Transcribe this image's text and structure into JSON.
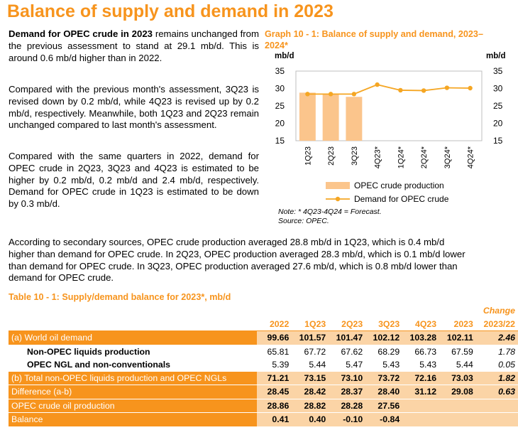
{
  "page": {
    "title": "Balance of supply and demand in 2023"
  },
  "paragraphs": {
    "p1_bold": "Demand for OPEC crude in 2023",
    "p1_rest": " remains unchanged from the previous assessment to stand at 29.1 mb/d. This is around 0.6 mb/d higher than in 2022.",
    "p2": "Compared with the previous month's assessment, 3Q23 is revised down by 0.2 mb/d, while 4Q23 is revised up by 0.2 mb/d, respectively. Meanwhile, both 1Q23 and 2Q23 remain unchanged compared to last month's assessment.",
    "p3": "Compared with the same quarters in 2022, demand for OPEC crude in 2Q23, 3Q23 and 4Q23 is estimated to be higher by 0.2 mb/d, 0.2 mb/d and 2.4 mb/d, respectively. Demand for OPEC crude in 1Q23 is estimated to be down by 0.3 mb/d.",
    "p4_line1": "According to secondary sources, OPEC crude production averaged 28.8 mb/d in 1Q23, which is 0.4 mb/d",
    "p4_line2": "higher than demand for OPEC crude. In 2Q23, OPEC production averaged 28.3 mb/d, which is 0.1 mb/d lower",
    "p4_line3": "than demand for OPEC crude. In 3Q23, OPEC production averaged 27.6 mb/d, which is 0.8 mb/d lower than",
    "p4_line4": "demand for OPEC crude."
  },
  "graph": {
    "title": "Graph 10 - 1: Balance of supply and demand, 2023–2024*",
    "note_line1": "Note: * 4Q23-4Q24 = Forecast.",
    "note_line2": "Source: OPEC."
  },
  "chart_data": {
    "type": "bar",
    "title": "Graph 10 - 1: Balance of supply and demand, 2023–2024*",
    "ylabel_left": "mb/d",
    "ylabel_right": "mb/d",
    "ylim": [
      15,
      35
    ],
    "yticks": [
      15,
      20,
      25,
      30,
      35
    ],
    "categories": [
      "1Q23",
      "2Q23",
      "3Q23",
      "4Q23*",
      "1Q24*",
      "2Q24*",
      "3Q24*",
      "4Q24*"
    ],
    "series": [
      {
        "name": "OPEC crude production",
        "type": "bar",
        "color": "#fbc58c",
        "values": [
          28.8,
          28.3,
          27.6,
          null,
          null,
          null,
          null,
          null
        ]
      },
      {
        "name": "Demand for OPEC crude",
        "type": "line",
        "color": "#f5a623",
        "values": [
          28.4,
          28.4,
          28.4,
          31.1,
          29.5,
          29.4,
          30.2,
          30.1
        ]
      }
    ],
    "legend": "bottom",
    "grid": false
  },
  "table": {
    "title": "Table 10 - 1: Supply/demand balance for 2023*, mb/d",
    "change_label": "Change",
    "headers": [
      "2022",
      "1Q23",
      "2Q23",
      "3Q23",
      "4Q23",
      "2023",
      "2023/22"
    ],
    "rows": [
      {
        "label": "(a) World oil demand",
        "values": [
          "99.66",
          "101.57",
          "101.47",
          "102.12",
          "103.28",
          "102.11"
        ],
        "change": "2.46"
      },
      {
        "label": "Non-OPEC liquids production",
        "values": [
          "65.81",
          "67.72",
          "67.62",
          "68.29",
          "66.73",
          "67.59"
        ],
        "change": "1.78"
      },
      {
        "label": "OPEC NGL and non-conventionals",
        "values": [
          "5.39",
          "5.44",
          "5.47",
          "5.43",
          "5.43",
          "5.44"
        ],
        "change": "0.05"
      },
      {
        "label": "(b) Total non-OPEC liquids production and OPEC NGLs",
        "values": [
          "71.21",
          "73.15",
          "73.10",
          "73.72",
          "72.16",
          "73.03"
        ],
        "change": "1.82"
      },
      {
        "label": "Difference (a-b)",
        "values": [
          "28.45",
          "28.42",
          "28.37",
          "28.40",
          "31.12",
          "29.08"
        ],
        "change": "0.63"
      },
      {
        "label": "OPEC crude oil production",
        "values": [
          "28.86",
          "28.82",
          "28.28",
          "27.56",
          "",
          ""
        ],
        "change": ""
      },
      {
        "label": "Balance",
        "values": [
          "0.41",
          "0.40",
          "-0.10",
          "-0.84",
          "",
          ""
        ],
        "change": ""
      }
    ]
  }
}
